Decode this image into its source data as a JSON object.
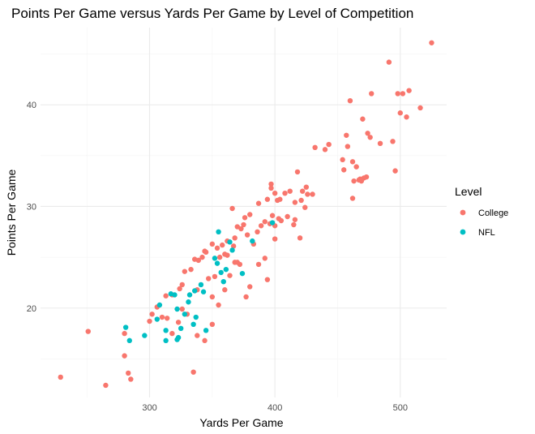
{
  "chart_data": {
    "type": "scatter",
    "title": "Points Per Game versus Yards Per Game by Level of Competition",
    "xlabel": "Yards Per Game",
    "ylabel": "Points Per Game",
    "xlim": [
      213,
      537
    ],
    "ylim": [
      11.2,
      47.6
    ],
    "x_ticks": [
      300,
      400,
      500
    ],
    "x_minor_ticks": [
      250,
      350,
      450
    ],
    "y_ticks": [
      20,
      30,
      40
    ],
    "y_minor_ticks": [
      15,
      25,
      35,
      45
    ],
    "x_tick_labels": [
      "300",
      "400",
      "500"
    ],
    "y_tick_labels": [
      "20",
      "30",
      "40"
    ],
    "grid": true,
    "legend": {
      "title": "Level",
      "placement": "right"
    },
    "series": [
      {
        "name": "College",
        "color": "#F8766D",
        "x": [
          525,
          491,
          502,
          498,
          507,
          516,
          477,
          460,
          470,
          500,
          494,
          505,
          457,
          484,
          474,
          476,
          443,
          440,
          458,
          432,
          454,
          462,
          465,
          471,
          473,
          468,
          455,
          467,
          469,
          463,
          496,
          462,
          422,
          430,
          418,
          425,
          397,
          421,
          412,
          416,
          426,
          424,
          404,
          408,
          402,
          400,
          397,
          387,
          392,
          398,
          405,
          410,
          396,
          415,
          400,
          380,
          376,
          370,
          375,
          366,
          373,
          378,
          386,
          368,
          362,
          367,
          358,
          354,
          350,
          345,
          342,
          339,
          333,
          328,
          326,
          324,
          336,
          344,
          360,
          356,
          362,
          368,
          372,
          364,
          352,
          347,
          392,
          400,
          383,
          387,
          370,
          380,
          394,
          420,
          416,
          403,
          394,
          389,
          377,
          350,
          355,
          360,
          338,
          318,
          313,
          306,
          310,
          302,
          300,
          314,
          326,
          323,
          330,
          338,
          344,
          350,
          318,
          283,
          280,
          280,
          251,
          285,
          229,
          265,
          335
        ],
        "y": [
          46.1,
          44.2,
          41.1,
          41.1,
          41.4,
          39.7,
          41.1,
          40.4,
          38.6,
          39.2,
          36.4,
          38.8,
          37.0,
          36.2,
          37.2,
          36.8,
          36.1,
          35.6,
          35.9,
          35.8,
          34.6,
          34.4,
          33.9,
          32.8,
          32.9,
          32.7,
          33.6,
          32.6,
          32.5,
          32.5,
          33.5,
          30.8,
          31.5,
          31.2,
          33.4,
          31.9,
          32.2,
          30.6,
          31.5,
          30.4,
          31.2,
          29.9,
          30.7,
          31.3,
          30.6,
          31.3,
          31.8,
          30.3,
          28.5,
          29.1,
          28.6,
          29.0,
          28.3,
          28.2,
          28.1,
          29.2,
          28.9,
          28.0,
          28.2,
          29.8,
          27.8,
          27.2,
          27.5,
          26.9,
          26.6,
          26.1,
          26.2,
          25.9,
          26.3,
          25.5,
          25.0,
          24.7,
          23.8,
          23.6,
          22.3,
          21.9,
          24.8,
          25.6,
          25.3,
          25.0,
          25.2,
          24.5,
          24.3,
          23.2,
          23.1,
          22.9,
          24.9,
          26.8,
          26.3,
          24.3,
          24.5,
          22.1,
          22.8,
          26.9,
          28.7,
          28.8,
          30.7,
          28.1,
          21.1,
          21.1,
          20.3,
          21.8,
          21.8,
          21.3,
          21.2,
          20.1,
          19.1,
          19.4,
          18.7,
          19.0,
          19.9,
          18.6,
          19.4,
          17.3,
          16.8,
          18.4,
          17.5,
          13.6,
          15.3,
          17.5,
          17.7,
          13.0,
          13.2,
          12.4,
          13.7
        ]
      },
      {
        "name": "NFL",
        "color": "#00BFC4",
        "x": [
          398,
          382,
          364,
          366,
          355,
          352,
          354,
          357,
          361,
          374,
          359,
          341,
          336,
          332,
          343,
          331,
          317,
          320,
          322,
          308,
          306,
          313,
          328,
          337,
          335,
          325,
          345,
          323,
          313,
          322,
          296,
          281,
          284
        ],
        "y": [
          28.4,
          26.6,
          26.5,
          25.7,
          27.5,
          24.9,
          24.4,
          23.5,
          23.8,
          23.4,
          22.6,
          22.3,
          21.7,
          21.3,
          21.6,
          20.6,
          21.4,
          21.3,
          19.9,
          20.3,
          18.9,
          17.8,
          19.4,
          19.1,
          18.4,
          18.0,
          17.8,
          17.1,
          16.8,
          16.9,
          17.3,
          18.1,
          16.8
        ]
      }
    ]
  }
}
